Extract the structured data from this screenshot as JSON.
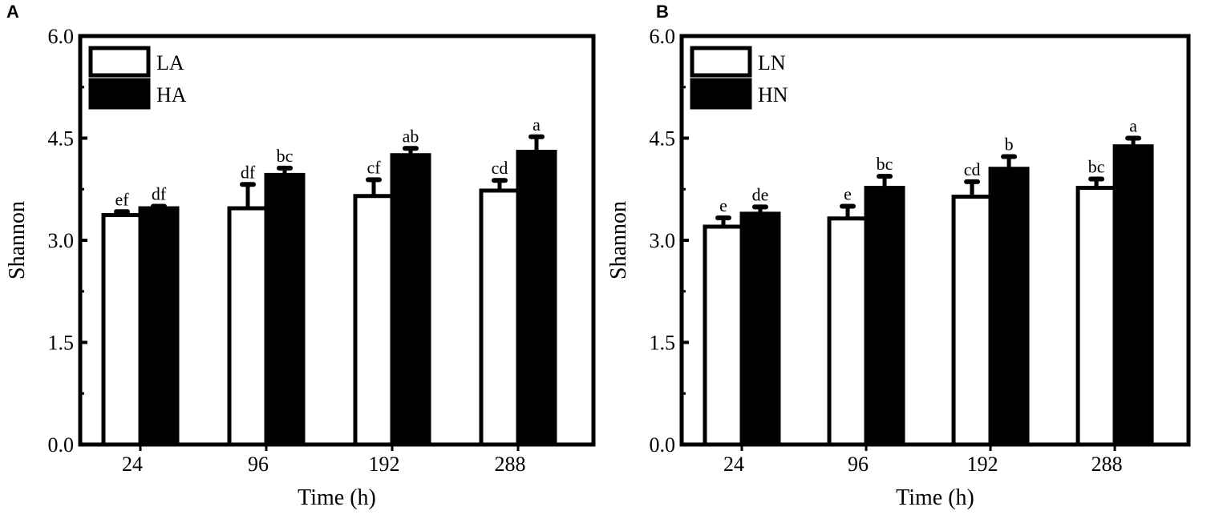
{
  "chart_data": [
    {
      "panel": "A",
      "type": "bar",
      "title": "",
      "xlabel": "Time (h)",
      "ylabel": "Shannon",
      "categories": [
        "24",
        "96",
        "192",
        "288"
      ],
      "ylim": [
        0,
        6
      ],
      "yticks": [
        "0.0",
        "1.5",
        "3.0",
        "4.5",
        "6.0"
      ],
      "legend_position": "top-left",
      "series": [
        {
          "name": "LA",
          "fill": "#ffffff",
          "values": [
            3.37,
            3.47,
            3.65,
            3.73
          ],
          "errors": [
            0.05,
            0.35,
            0.24,
            0.15
          ],
          "labels": [
            "ef",
            "df",
            "cf",
            "cd"
          ]
        },
        {
          "name": "HA",
          "fill": "#000000",
          "values": [
            3.47,
            3.96,
            4.25,
            4.3
          ],
          "errors": [
            0.03,
            0.1,
            0.1,
            0.22
          ],
          "labels": [
            "df",
            "bc",
            "ab",
            "a"
          ]
        }
      ]
    },
    {
      "panel": "B",
      "type": "bar",
      "title": "",
      "xlabel": "Time (h)",
      "ylabel": "Shannon",
      "categories": [
        "24",
        "96",
        "192",
        "288"
      ],
      "ylim": [
        0,
        6
      ],
      "yticks": [
        "0.0",
        "1.5",
        "3.0",
        "4.5",
        "6.0"
      ],
      "legend_position": "top-left",
      "series": [
        {
          "name": "LN",
          "fill": "#ffffff",
          "values": [
            3.2,
            3.32,
            3.64,
            3.77
          ],
          "errors": [
            0.13,
            0.18,
            0.22,
            0.13
          ],
          "labels": [
            "e",
            "e",
            "cd",
            "bc"
          ]
        },
        {
          "name": "HN",
          "fill": "#000000",
          "values": [
            3.39,
            3.77,
            4.05,
            4.38
          ],
          "errors": [
            0.1,
            0.17,
            0.18,
            0.12
          ],
          "labels": [
            "de",
            "bc",
            "b",
            "a"
          ]
        }
      ]
    }
  ]
}
